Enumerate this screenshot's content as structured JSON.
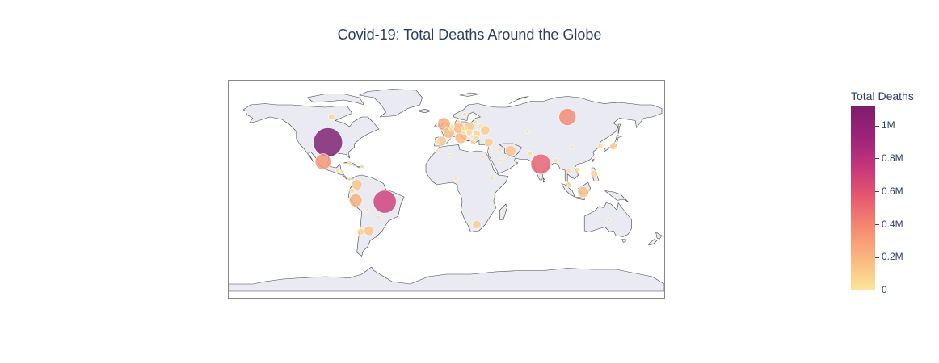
{
  "title": "Covid-19: Total Deaths Around the Globe",
  "colorbar": {
    "title": "Total Deaths",
    "ticks": [
      {
        "label": "0",
        "value": 0
      },
      {
        "label": "0.2M",
        "value": 200000
      },
      {
        "label": "0.4M",
        "value": 400000
      },
      {
        "label": "0.6M",
        "value": 600000
      },
      {
        "label": "0.8M",
        "value": 800000
      },
      {
        "label": "1M",
        "value": 1000000
      }
    ],
    "max": 1120000,
    "colors": [
      "#fce49b",
      "#f9b880",
      "#f58b70",
      "#e7596f",
      "#c6357b",
      "#9b2378",
      "#7d1d6f"
    ]
  },
  "chart_data": {
    "type": "scatter_geo",
    "projection": "equirectangular",
    "lon_range": [
      -180,
      180
    ],
    "lat_range": [
      -90,
      90
    ],
    "land_color": "#e9eaf2",
    "coast_color": "#444444",
    "points": [
      {
        "lon": -98,
        "lat": 39,
        "value": 1120000
      },
      {
        "lon": -51,
        "lat": -10,
        "value": 700000
      },
      {
        "lon": 78,
        "lat": 21,
        "value": 530000
      },
      {
        "lon": 100,
        "lat": 60,
        "value": 390000
      },
      {
        "lon": -102,
        "lat": 23,
        "value": 330000
      },
      {
        "lon": -75,
        "lat": -9,
        "value": 220000
      },
      {
        "lon": -2,
        "lat": 54,
        "value": 220000
      },
      {
        "lon": 12,
        "lat": 43,
        "value": 190000
      },
      {
        "lon": 10,
        "lat": 51,
        "value": 170000
      },
      {
        "lon": 2,
        "lat": 47,
        "value": 165000
      },
      {
        "lon": -74,
        "lat": 4,
        "value": 142000
      },
      {
        "lon": -64,
        "lat": -34,
        "value": 130000
      },
      {
        "lon": 53,
        "lat": 32,
        "value": 145000
      },
      {
        "lon": 113,
        "lat": -2,
        "value": 160000
      },
      {
        "lon": 32,
        "lat": 49,
        "value": 112000
      },
      {
        "lon": 19,
        "lat": 52,
        "value": 119000
      },
      {
        "lon": -4,
        "lat": 40,
        "value": 120000
      },
      {
        "lon": 25,
        "lat": -29,
        "value": 102000
      },
      {
        "lon": 35,
        "lat": 39,
        "value": 101000
      },
      {
        "lon": -78,
        "lat": -1,
        "value": 36000
      },
      {
        "lon": 25,
        "lat": 46,
        "value": 68000
      },
      {
        "lon": -71,
        "lat": -35,
        "value": 64000
      },
      {
        "lon": 122,
        "lat": 13,
        "value": 66000
      },
      {
        "lon": 15,
        "lat": 50,
        "value": 43000
      },
      {
        "lon": 19,
        "lat": 47,
        "value": 49000
      },
      {
        "lon": 101,
        "lat": 15,
        "value": 34000
      },
      {
        "lon": 138,
        "lat": 36,
        "value": 74000
      },
      {
        "lon": 30,
        "lat": 27,
        "value": 24000
      },
      {
        "lon": 4,
        "lat": 50.6,
        "value": 34000
      },
      {
        "lon": 5,
        "lat": 52,
        "value": 23000
      },
      {
        "lon": -95,
        "lat": 60,
        "value": 52000
      },
      {
        "lon": 67,
        "lat": 48,
        "value": 19000
      },
      {
        "lon": 69,
        "lat": 30,
        "value": 31000
      },
      {
        "lon": 90,
        "lat": 24,
        "value": 29000
      },
      {
        "lon": 108,
        "lat": 16,
        "value": 43000
      },
      {
        "lon": 101,
        "lat": 4,
        "value": 37000
      },
      {
        "lon": 22,
        "lat": 39,
        "value": 36000
      },
      {
        "lon": 14,
        "lat": 47.5,
        "value": 22000
      },
      {
        "lon": 25,
        "lat": 43,
        "value": 38000
      },
      {
        "lon": 21,
        "lat": 44,
        "value": 17000
      },
      {
        "lon": -8,
        "lat": 39.5,
        "value": 27000
      },
      {
        "lon": 127.5,
        "lat": 36,
        "value": 34000
      },
      {
        "lon": 104,
        "lat": 35,
        "value": 20000
      },
      {
        "lon": 44,
        "lat": 33,
        "value": 25000
      },
      {
        "lon": 134,
        "lat": -25,
        "value": 18000
      },
      {
        "lon": -70,
        "lat": 19,
        "value": 4400
      },
      {
        "lon": 38,
        "lat": 9,
        "value": 7600
      },
      {
        "lon": 8,
        "lat": 9,
        "value": 3200
      },
      {
        "lon": 45,
        "lat": 24,
        "value": 9600
      },
      {
        "lon": 36,
        "lat": 32,
        "value": 14000
      },
      {
        "lon": 40,
        "lat": -6,
        "value": 900
      },
      {
        "lon": 3,
        "lat": 28,
        "value": 6900
      },
      {
        "lon": -7,
        "lat": 32,
        "value": 16000
      },
      {
        "lon": -65,
        "lat": -17,
        "value": 22000
      },
      {
        "lon": -56,
        "lat": -23,
        "value": 19000
      },
      {
        "lon": -80.5,
        "lat": 9,
        "value": 8600
      },
      {
        "lon": -86,
        "lat": 15,
        "value": 11000
      },
      {
        "lon": -90,
        "lat": 15.5,
        "value": 20000
      },
      {
        "lon": -80,
        "lat": 22,
        "value": 8500
      },
      {
        "lon": 28,
        "lat": 53,
        "value": 7100
      },
      {
        "lon": 24,
        "lat": 56,
        "value": 9600
      },
      {
        "lon": 10,
        "lat": 56,
        "value": 8000
      },
      {
        "lon": 15,
        "lat": 62,
        "value": 24000
      }
    ]
  }
}
